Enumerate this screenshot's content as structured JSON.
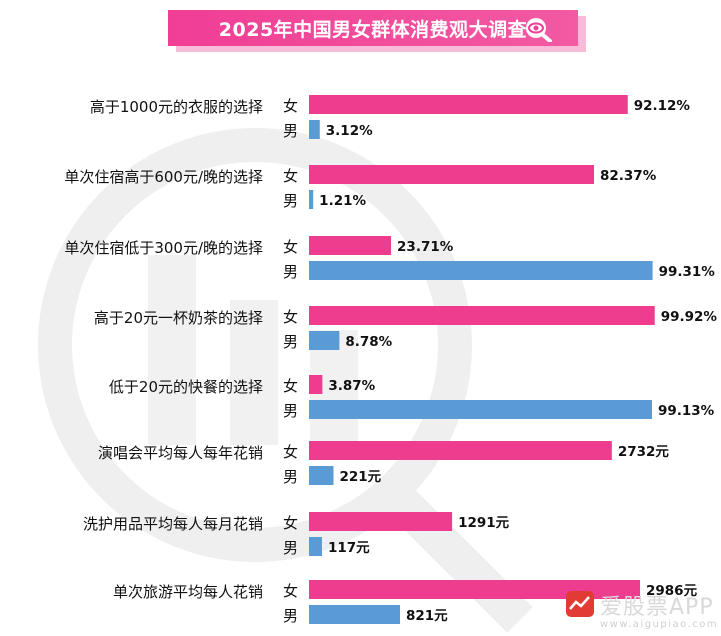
{
  "title": "2025年中国男女群体消费观大调查",
  "colors": {
    "female": "#ee3c8f",
    "male": "#5b9bd5",
    "title_bg": "#f03e94"
  },
  "brand": {
    "name": "爱股票APP",
    "url": "www.aigupiao.com",
    "logo_icon": "stock-chart-icon"
  },
  "sex_labels": {
    "female": "女",
    "male": "男"
  },
  "chart_data": {
    "type": "bar",
    "orientation": "horizontal",
    "title": "2025年中国男女群体消费观大调查",
    "groups": [
      {
        "category": "高于1000元的衣服的选择",
        "female": {
          "value": 92.12,
          "label": "92.12%"
        },
        "male": {
          "value": 3.12,
          "label": "3.12%"
        }
      },
      {
        "category": "单次住宿高于600元/晚的选择",
        "female": {
          "value": 82.37,
          "label": "82.37%"
        },
        "male": {
          "value": 1.21,
          "label": "1.21%"
        }
      },
      {
        "category": "单次住宿低于300元/晚的选择",
        "female": {
          "value": 23.71,
          "label": "23.71%"
        },
        "male": {
          "value": 99.31,
          "label": "99.31%"
        }
      },
      {
        "category": "高于20元一杯奶茶的选择",
        "female": {
          "value": 99.92,
          "label": "99.92%"
        },
        "male": {
          "value": 8.78,
          "label": "8.78%"
        }
      },
      {
        "category": "低于20元的快餐的选择",
        "female": {
          "value": 3.87,
          "label": "3.87%"
        },
        "male": {
          "value": 99.13,
          "label": "99.13%"
        }
      },
      {
        "category": "演唱会平均每人每年花销",
        "female": {
          "value": 2732,
          "label": "2732元"
        },
        "male": {
          "value": 221,
          "label": "221元"
        }
      },
      {
        "category": "洗护用品平均每人每月花销",
        "female": {
          "value": 1291,
          "label": "1291元"
        },
        "male": {
          "value": 117,
          "label": "117元"
        }
      },
      {
        "category": "单次旅游平均每人花销",
        "female": {
          "value": 2986,
          "label": "2986元"
        },
        "male": {
          "value": 821,
          "label": "821元"
        }
      }
    ]
  }
}
